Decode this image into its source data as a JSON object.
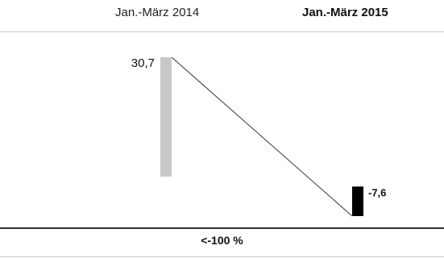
{
  "chart_data": {
    "type": "bar",
    "categories": [
      "Jan.-März 2014",
      "Jan.-März 2015"
    ],
    "values": [
      30.7,
      -7.6
    ],
    "value_labels": [
      "30,7",
      "-7,6"
    ],
    "change_label": "<-100 %",
    "colors": {
      "first": "#c8c8c8",
      "second": "#000000",
      "connector": "#333333"
    }
  }
}
